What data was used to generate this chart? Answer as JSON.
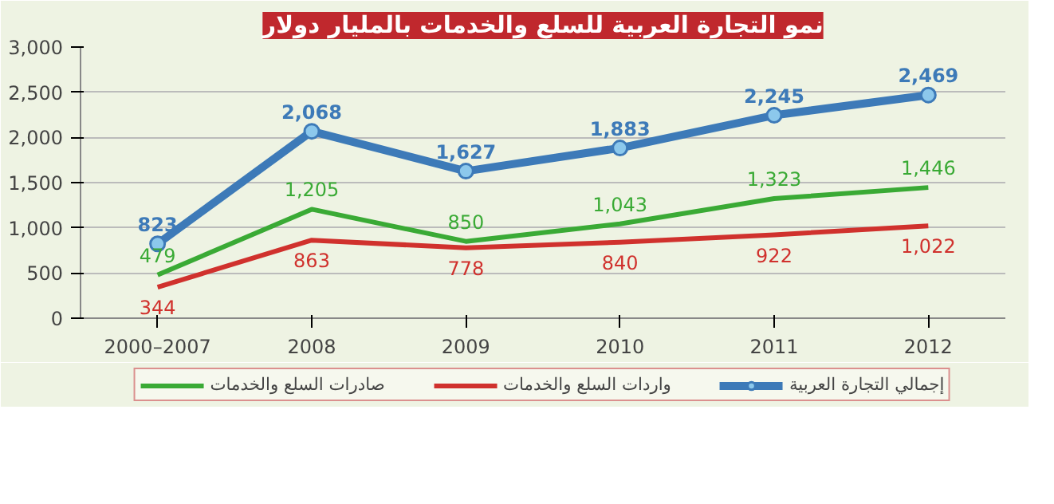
{
  "chart_data": {
    "type": "line",
    "title": "نمو التجارة العربية للسلع والخدمات بالمليار دولار",
    "categories": [
      "2000–2007",
      "2008",
      "2009",
      "2010",
      "2011",
      "2012"
    ],
    "series": [
      {
        "name": "صادرات السلع والخدمات",
        "color": "#3aaa35",
        "values": [
          479,
          1205,
          850,
          1043,
          1323,
          1446
        ],
        "value_labels": [
          "479",
          "1,205",
          "850",
          "1,043",
          "1,323",
          "1,446"
        ]
      },
      {
        "name": "واردات السلع والخدمات",
        "color": "#d0312d",
        "values": [
          344,
          863,
          778,
          840,
          922,
          1022
        ],
        "value_labels": [
          "344",
          "863",
          "778",
          "840",
          "922",
          "1,022"
        ]
      },
      {
        "name": "إجمالي التجارة العربية",
        "color": "#3d7ab8",
        "values": [
          823,
          2068,
          1627,
          1883,
          2245,
          2469
        ],
        "value_labels": [
          "823",
          "2,068",
          "1,627",
          "1,883",
          "2,245",
          "2,469"
        ],
        "marker": "circle"
      }
    ],
    "ylim": [
      0,
      3000
    ],
    "yticks": [
      {
        "value": 0,
        "label": "0"
      },
      {
        "value": 500,
        "label": "500"
      },
      {
        "value": 1000,
        "label": "1,000"
      },
      {
        "value": 1500,
        "label": "1,500"
      },
      {
        "value": 2000,
        "label": "2,000"
      },
      {
        "value": 2500,
        "label": "2,500"
      },
      {
        "value": 3000,
        "label": "3,000"
      }
    ],
    "grid": "y",
    "legend": "bottom"
  }
}
